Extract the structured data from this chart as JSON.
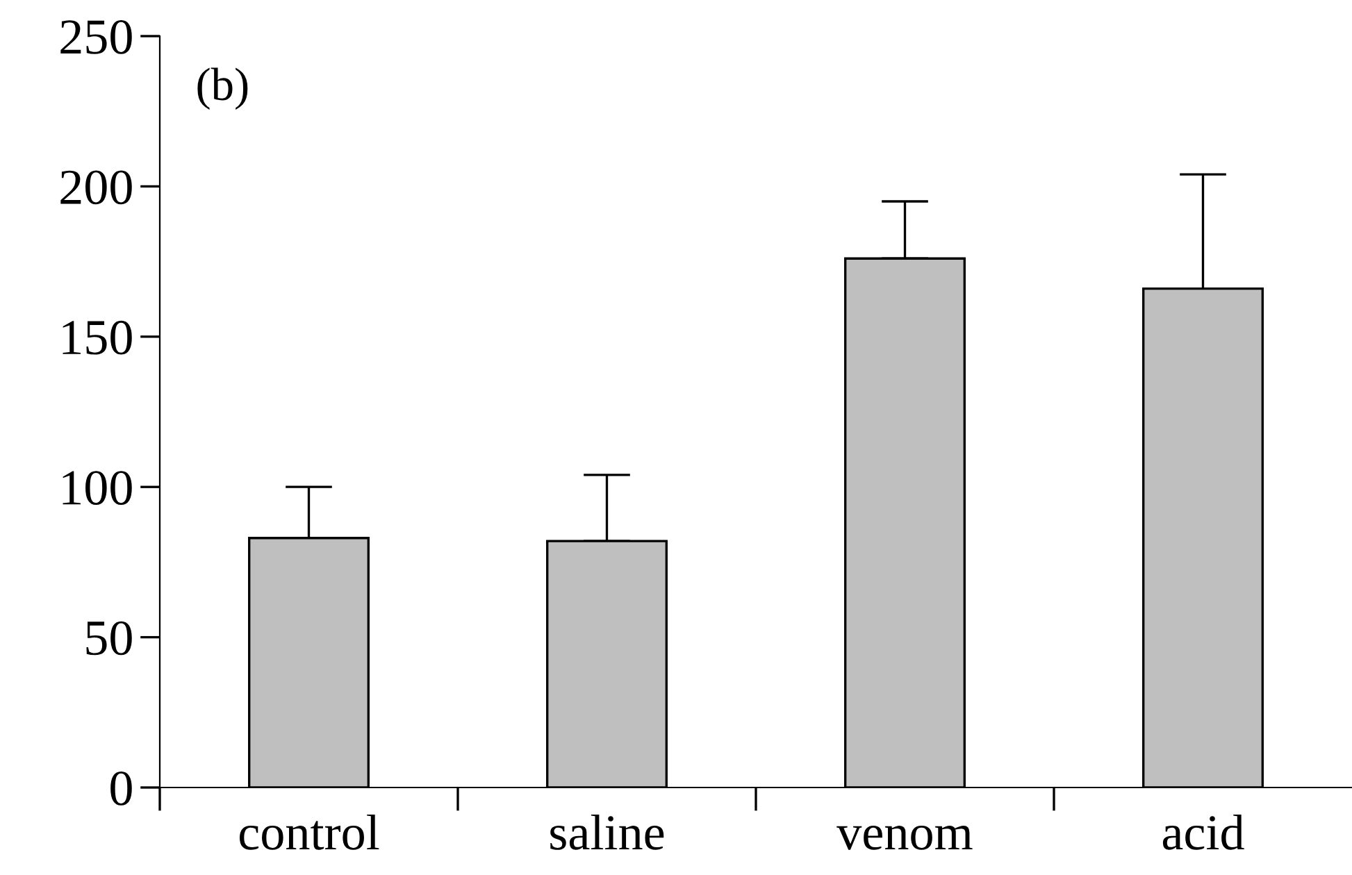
{
  "chart_data": {
    "type": "bar",
    "categories": [
      "control",
      "saline",
      "venom",
      "acid"
    ],
    "values": [
      83,
      82,
      176,
      166
    ],
    "errors": [
      [
        83,
        100
      ],
      [
        82,
        104
      ],
      [
        176,
        195
      ],
      [
        166,
        204
      ]
    ],
    "color": "#bfbfbf",
    "ylim": [
      0,
      250
    ],
    "yticks": [
      0,
      50,
      100,
      150,
      200,
      250
    ],
    "annotations": [
      "(b)"
    ],
    "grid": false,
    "legend": false
  }
}
